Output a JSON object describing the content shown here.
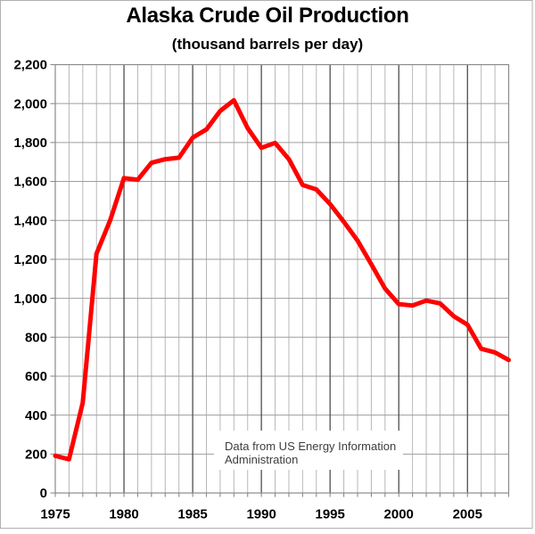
{
  "chart_data": {
    "type": "line",
    "title": "Alaska Crude Oil Production",
    "subtitle": "(thousand barrels per day)",
    "series_name": "Alaska crude oil production",
    "x": [
      1975,
      1976,
      1977,
      1978,
      1979,
      1980,
      1981,
      1982,
      1983,
      1984,
      1985,
      1986,
      1987,
      1988,
      1989,
      1990,
      1991,
      1992,
      1993,
      1994,
      1995,
      1996,
      1997,
      1998,
      1999,
      2000,
      2001,
      2002,
      2003,
      2004,
      2005,
      2006,
      2007,
      2008
    ],
    "values": [
      191,
      173,
      464,
      1229,
      1401,
      1617,
      1609,
      1696,
      1714,
      1722,
      1825,
      1867,
      1962,
      2017,
      1874,
      1773,
      1798,
      1714,
      1582,
      1559,
      1484,
      1393,
      1296,
      1175,
      1050,
      970,
      963,
      988,
      974,
      908,
      864,
      741,
      722,
      683
    ],
    "xlim": [
      1975,
      2008
    ],
    "ylim": [
      0,
      2200
    ],
    "x_tick_labels": [
      "1975",
      "1980",
      "1985",
      "1990",
      "1995",
      "2000",
      "2005"
    ],
    "x_tick_positions": [
      1975,
      1980,
      1985,
      1990,
      1995,
      2000,
      2005
    ],
    "y_tick_positions": [
      0,
      200,
      400,
      600,
      800,
      1000,
      1200,
      1400,
      1600,
      1800,
      2000,
      2200
    ],
    "y_tick_labels": [
      "0",
      "200",
      "400",
      "600",
      "800",
      "1,000",
      "1,200",
      "1,400",
      "1,600",
      "1,800",
      "2,000",
      "2,200"
    ],
    "grid": {
      "grid_on": true,
      "x_minor_step": 1,
      "x_major_step": 5,
      "y_step": 200
    },
    "legend": "none",
    "annotation": {
      "line1": "Data from US Energy Information",
      "line2": "Administration"
    },
    "colors": {
      "line": "#ff0000",
      "minor_grid": "#b8b8b8",
      "major_grid": "#4f4f4f",
      "h_grid": "#9e9e9e",
      "axis": "#8a8a8a",
      "frame_border": "#b0b0b0",
      "text": "#000000",
      "annotation_text": "#3d3d3d",
      "background": "#ffffff"
    }
  }
}
